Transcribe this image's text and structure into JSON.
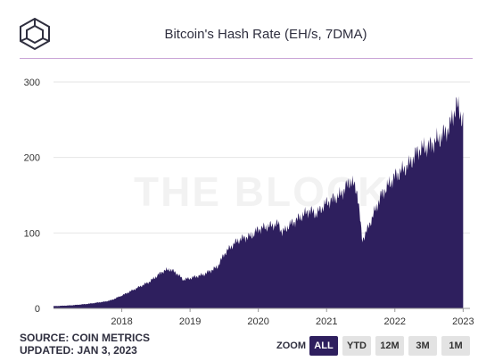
{
  "title": "Bitcoin's Hash Rate (EH/s, 7DMA)",
  "watermark": "THE BLOCK",
  "source": "SOURCE: COIN METRICS",
  "updated": "UPDATED: JAN 3, 2023",
  "zoom": {
    "label": "ZOOM",
    "buttons": [
      {
        "label": "ALL",
        "active": true
      },
      {
        "label": "YTD",
        "active": false
      },
      {
        "label": "12M",
        "active": false
      },
      {
        "label": "3M",
        "active": false
      },
      {
        "label": "1M",
        "active": false
      }
    ]
  },
  "colors": {
    "series": "#2e1f5e",
    "accent": "#c9a3d6",
    "zoom_active": "#2e1f5e"
  },
  "chart_data": {
    "type": "area",
    "title": "Bitcoin's Hash Rate (EH/s, 7DMA)",
    "xlabel": "",
    "ylabel": "",
    "ylim": [
      0,
      300
    ],
    "xlim": [
      2017.0,
      2023.1
    ],
    "yticks": [
      0,
      100,
      200,
      300
    ],
    "xticks": [
      2018,
      2019,
      2020,
      2021,
      2022,
      2023
    ],
    "xtick_labels": [
      "2018",
      "2019",
      "2020",
      "2021",
      "2022",
      "2023"
    ],
    "grid": true,
    "series": [
      {
        "values": [
          [
            2017.0,
            3
          ],
          [
            2017.25,
            4
          ],
          [
            2017.5,
            6
          ],
          [
            2017.75,
            9
          ],
          [
            2017.85,
            11
          ],
          [
            2018.0,
            17
          ],
          [
            2018.2,
            26
          ],
          [
            2018.4,
            35
          ],
          [
            2018.6,
            49
          ],
          [
            2018.7,
            52
          ],
          [
            2018.8,
            47
          ],
          [
            2018.9,
            38
          ],
          [
            2019.0,
            40
          ],
          [
            2019.2,
            45
          ],
          [
            2019.4,
            55
          ],
          [
            2019.5,
            72
          ],
          [
            2019.6,
            82
          ],
          [
            2019.7,
            90
          ],
          [
            2019.8,
            94
          ],
          [
            2019.9,
            96
          ],
          [
            2020.0,
            105
          ],
          [
            2020.2,
            110
          ],
          [
            2020.3,
            112
          ],
          [
            2020.35,
            100
          ],
          [
            2020.45,
            110
          ],
          [
            2020.6,
            120
          ],
          [
            2020.75,
            130
          ],
          [
            2020.85,
            125
          ],
          [
            2020.95,
            135
          ],
          [
            2021.0,
            140
          ],
          [
            2021.2,
            150
          ],
          [
            2021.35,
            170
          ],
          [
            2021.45,
            155
          ],
          [
            2021.5,
            110
          ],
          [
            2021.52,
            90
          ],
          [
            2021.6,
            105
          ],
          [
            2021.8,
            150
          ],
          [
            2022.0,
            175
          ],
          [
            2022.2,
            190
          ],
          [
            2022.35,
            210
          ],
          [
            2022.5,
            215
          ],
          [
            2022.65,
            225
          ],
          [
            2022.8,
            240
          ],
          [
            2022.9,
            270
          ],
          [
            2022.95,
            260
          ],
          [
            2023.0,
            250
          ]
        ]
      }
    ]
  }
}
